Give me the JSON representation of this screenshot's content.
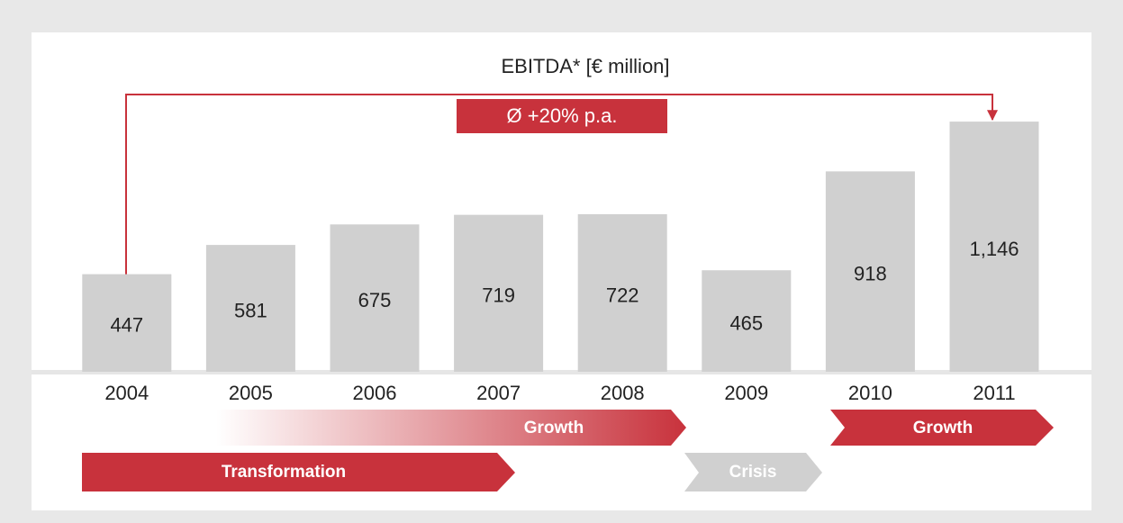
{
  "chart_data": {
    "type": "bar",
    "title": "EBITDA* [€ million]",
    "categories": [
      "2004",
      "2005",
      "2006",
      "2007",
      "2008",
      "2009",
      "2010",
      "2011"
    ],
    "values": [
      447,
      581,
      675,
      719,
      722,
      465,
      918,
      1146
    ],
    "value_labels": [
      "447",
      "581",
      "675",
      "719",
      "722",
      "465",
      "918",
      "1,146"
    ],
    "color": "#d0d0d0",
    "ylim": [
      0,
      1200
    ],
    "annotation": "Ø +20% p.a.",
    "phases": [
      "Growth",
      "Growth",
      "Transformation",
      "Crisis"
    ]
  }
}
